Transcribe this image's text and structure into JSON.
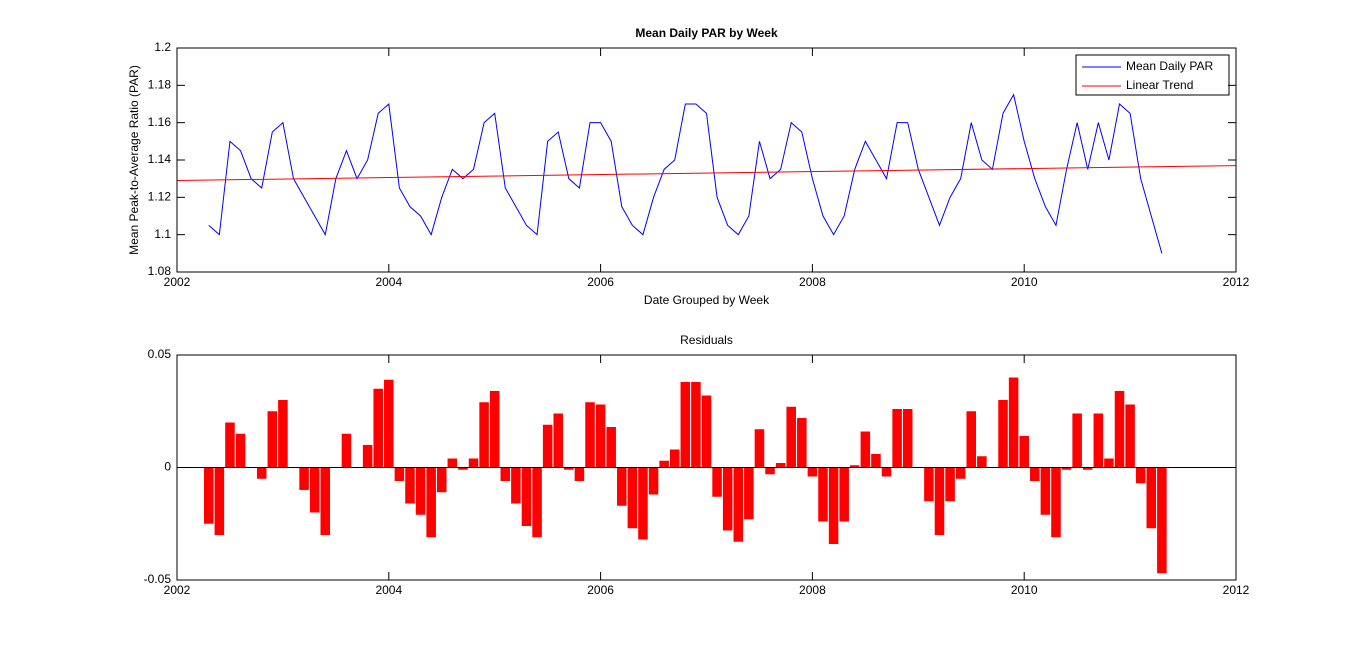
{
  "chart_data": [
    {
      "type": "line",
      "title": "Mean Daily PAR by Week",
      "xlabel": "Date Grouped by Week",
      "ylabel": "Mean Peak-to-Average Ratio (PAR)",
      "xlim": [
        2002,
        2012
      ],
      "xticks": [
        2002,
        2004,
        2006,
        2008,
        2010,
        2012
      ],
      "ylim": [
        1.08,
        1.2
      ],
      "yticks": [
        1.08,
        1.1,
        1.12,
        1.14,
        1.16,
        1.18,
        1.2
      ],
      "legend": "upper right",
      "grid": false,
      "series": [
        {
          "name": "Mean Daily PAR",
          "color": "#0000ff",
          "x": [
            2002.3,
            2002.4,
            2002.5,
            2002.6,
            2002.7,
            2002.8,
            2002.9,
            2003.0,
            2003.1,
            2003.2,
            2003.3,
            2003.4,
            2003.5,
            2003.6,
            2003.7,
            2003.8,
            2003.9,
            2004.0,
            2004.1,
            2004.2,
            2004.3,
            2004.4,
            2004.5,
            2004.6,
            2004.7,
            2004.8,
            2004.9,
            2005.0,
            2005.1,
            2005.2,
            2005.3,
            2005.4,
            2005.5,
            2005.6,
            2005.7,
            2005.8,
            2005.9,
            2006.0,
            2006.1,
            2006.2,
            2006.3,
            2006.4,
            2006.5,
            2006.6,
            2006.7,
            2006.8,
            2006.9,
            2007.0,
            2007.1,
            2007.2,
            2007.3,
            2007.4,
            2007.5,
            2007.6,
            2007.7,
            2007.8,
            2007.9,
            2008.0,
            2008.1,
            2008.2,
            2008.3,
            2008.4,
            2008.5,
            2008.6,
            2008.7,
            2008.8,
            2008.9,
            2009.0,
            2009.1,
            2009.2,
            2009.3,
            2009.4,
            2009.5,
            2009.6,
            2009.7,
            2009.8,
            2009.9,
            2010.0,
            2010.1,
            2010.2,
            2010.3,
            2010.4,
            2010.5,
            2010.6,
            2010.7,
            2010.8,
            2010.9,
            2011.0,
            2011.1,
            2011.2,
            2011.3
          ],
          "values": [
            1.105,
            1.1,
            1.15,
            1.145,
            1.13,
            1.125,
            1.155,
            1.16,
            1.13,
            1.12,
            1.11,
            1.1,
            1.13,
            1.145,
            1.13,
            1.14,
            1.165,
            1.17,
            1.125,
            1.115,
            1.11,
            1.1,
            1.12,
            1.135,
            1.13,
            1.135,
            1.16,
            1.165,
            1.125,
            1.115,
            1.105,
            1.1,
            1.15,
            1.155,
            1.13,
            1.125,
            1.16,
            1.16,
            1.15,
            1.115,
            1.105,
            1.1,
            1.12,
            1.135,
            1.14,
            1.17,
            1.17,
            1.165,
            1.12,
            1.105,
            1.1,
            1.11,
            1.15,
            1.13,
            1.135,
            1.16,
            1.155,
            1.13,
            1.11,
            1.1,
            1.11,
            1.135,
            1.15,
            1.14,
            1.13,
            1.16,
            1.16,
            1.135,
            1.12,
            1.105,
            1.12,
            1.13,
            1.16,
            1.14,
            1.135,
            1.165,
            1.175,
            1.15,
            1.13,
            1.115,
            1.105,
            1.135,
            1.16,
            1.135,
            1.16,
            1.14,
            1.17,
            1.165,
            1.13,
            1.11,
            1.09
          ]
        },
        {
          "name": "Linear Trend",
          "color": "#ff0000",
          "x": [
            2002,
            2012
          ],
          "values": [
            1.129,
            1.137
          ]
        }
      ]
    },
    {
      "type": "bar",
      "title": "Residuals",
      "color": "#ff0000",
      "xlim": [
        2002,
        2012
      ],
      "xticks": [
        2002,
        2004,
        2006,
        2008,
        2010,
        2012
      ],
      "ylim": [
        -0.05,
        0.05
      ],
      "yticks": [
        -0.05,
        0,
        0.05
      ],
      "x": [
        2002.3,
        2002.4,
        2002.5,
        2002.6,
        2002.7,
        2002.8,
        2002.9,
        2003.0,
        2003.1,
        2003.2,
        2003.3,
        2003.4,
        2003.5,
        2003.6,
        2003.7,
        2003.8,
        2003.9,
        2004.0,
        2004.1,
        2004.2,
        2004.3,
        2004.4,
        2004.5,
        2004.6,
        2004.7,
        2004.8,
        2004.9,
        2005.0,
        2005.1,
        2005.2,
        2005.3,
        2005.4,
        2005.5,
        2005.6,
        2005.7,
        2005.8,
        2005.9,
        2006.0,
        2006.1,
        2006.2,
        2006.3,
        2006.4,
        2006.5,
        2006.6,
        2006.7,
        2006.8,
        2006.9,
        2007.0,
        2007.1,
        2007.2,
        2007.3,
        2007.4,
        2007.5,
        2007.6,
        2007.7,
        2007.8,
        2007.9,
        2008.0,
        2008.1,
        2008.2,
        2008.3,
        2008.4,
        2008.5,
        2008.6,
        2008.7,
        2008.8,
        2008.9,
        2009.0,
        2009.1,
        2009.2,
        2009.3,
        2009.4,
        2009.5,
        2009.6,
        2009.7,
        2009.8,
        2009.9,
        2010.0,
        2010.1,
        2010.2,
        2010.3,
        2010.4,
        2010.5,
        2010.6,
        2010.7,
        2010.8,
        2010.9,
        2011.0,
        2011.1,
        2011.2,
        2011.3
      ],
      "values": [
        -0.025,
        -0.03,
        0.02,
        0.015,
        0.0,
        -0.005,
        0.025,
        0.03,
        0.0,
        -0.01,
        -0.02,
        -0.03,
        0.0,
        0.015,
        0.0,
        0.01,
        0.035,
        0.039,
        -0.006,
        -0.016,
        -0.021,
        -0.031,
        -0.011,
        0.004,
        -0.001,
        0.004,
        0.029,
        0.034,
        -0.006,
        -0.016,
        -0.026,
        -0.031,
        0.019,
        0.024,
        -0.001,
        -0.006,
        0.029,
        0.028,
        0.018,
        -0.017,
        -0.027,
        -0.032,
        -0.012,
        0.003,
        0.008,
        0.038,
        0.038,
        0.032,
        -0.013,
        -0.028,
        -0.033,
        -0.023,
        0.017,
        -0.003,
        0.002,
        0.027,
        0.022,
        -0.004,
        -0.024,
        -0.034,
        -0.024,
        0.001,
        0.016,
        0.006,
        -0.004,
        0.026,
        0.026,
        0.0,
        -0.015,
        -0.03,
        -0.015,
        -0.005,
        0.025,
        0.005,
        0.0,
        0.03,
        0.04,
        0.014,
        -0.006,
        -0.021,
        -0.031,
        -0.001,
        0.024,
        -0.001,
        0.024,
        0.004,
        0.034,
        0.028,
        -0.007,
        -0.027,
        -0.047
      ]
    }
  ]
}
